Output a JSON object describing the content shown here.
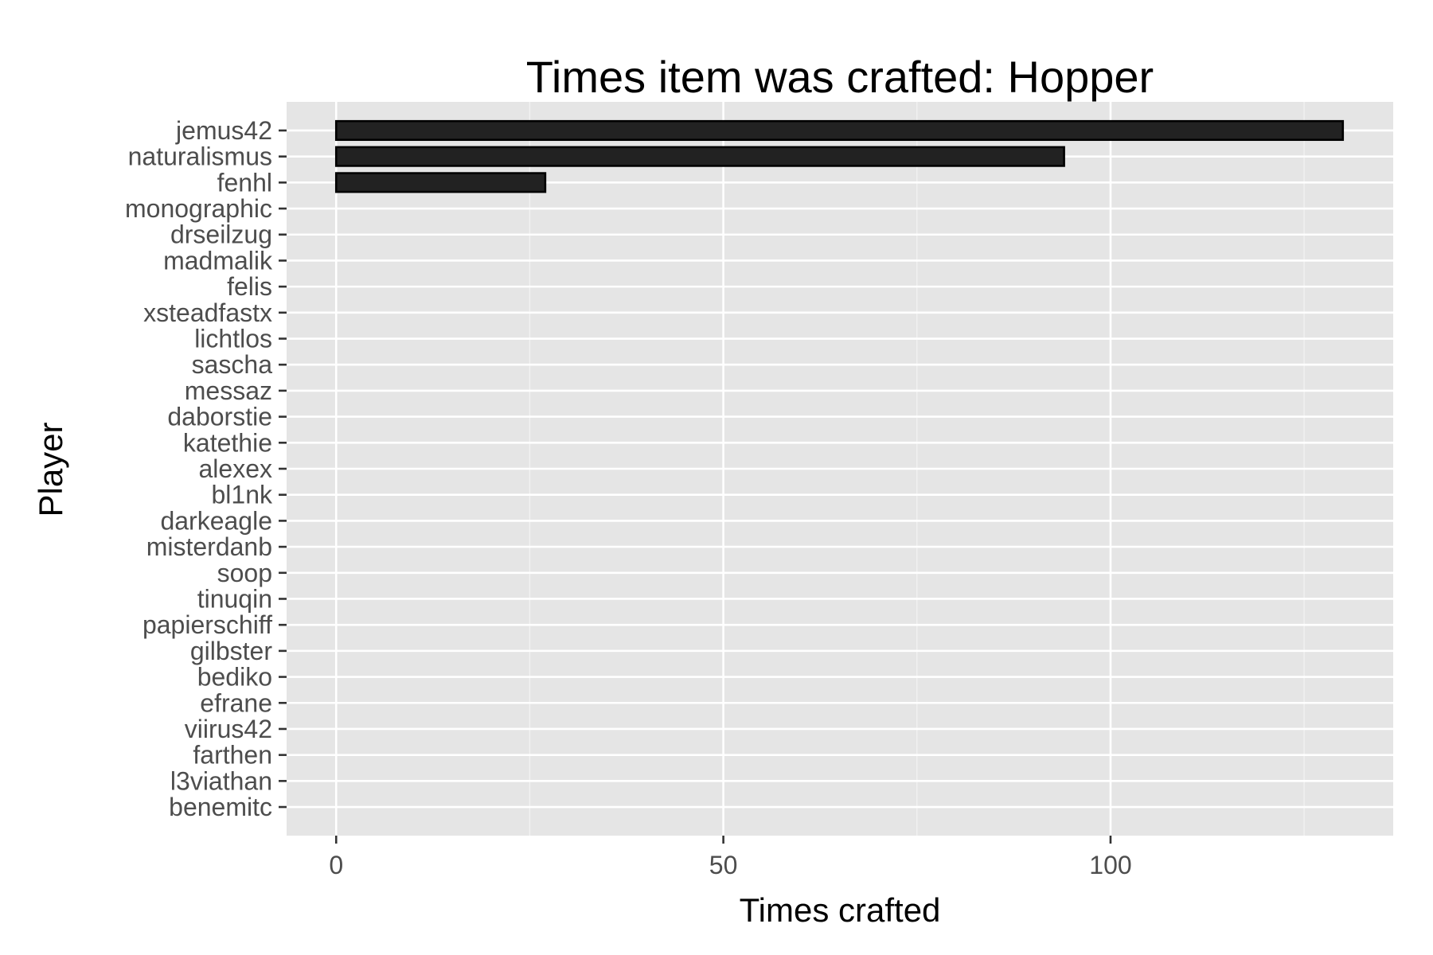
{
  "chart_data": {
    "type": "bar",
    "orientation": "horizontal",
    "title": "Times item was crafted: Hopper",
    "xlabel": "Times crafted",
    "ylabel": "Player",
    "xlim": [
      -6.4,
      136.5
    ],
    "x_ticks": [
      0,
      50,
      100
    ],
    "x_tick_labels": [
      "0",
      "50",
      "100"
    ],
    "x_minor_ticks": [
      25,
      75,
      125
    ],
    "grid": true,
    "legend": "none",
    "bar_fill": "#222222",
    "bar_stroke": "#000000",
    "panel_color": "#e5e5e5",
    "categories": [
      "jemus42",
      "naturalismus",
      "fenhl",
      "monographic",
      "drseilzug",
      "madmalik",
      "felis",
      "xsteadfastx",
      "lichtlos",
      "sascha",
      "messaz",
      "daborstie",
      "katethie",
      "alexex",
      "bl1nk",
      "darkeagle",
      "misterdanb",
      "soop",
      "tinuqin",
      "papierschiff",
      "gilbster",
      "bediko",
      "efrane",
      "viirus42",
      "farthen",
      "l3viathan",
      "benemitc"
    ],
    "values": [
      130,
      94,
      27,
      0,
      0,
      0,
      0,
      0,
      0,
      0,
      0,
      0,
      0,
      0,
      0,
      0,
      0,
      0,
      0,
      0,
      0,
      0,
      0,
      0,
      0,
      0,
      0
    ]
  }
}
